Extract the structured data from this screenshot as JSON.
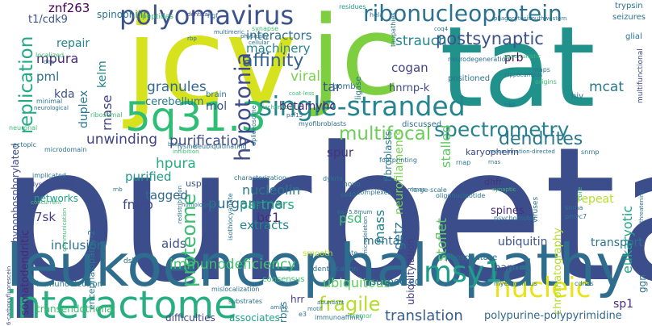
{
  "words": [
    {
      "text": "purbeta",
      "color": "#3b4e8b"
    },
    {
      "text": "jcv",
      "color": "#d7e21f"
    },
    {
      "text": "jc",
      "color": "#7dcf3f"
    },
    {
      "text": "tat",
      "color": "#21918c"
    },
    {
      "text": "leukoencephalopathy",
      "color": "#2f6d8e"
    },
    {
      "text": "interactome",
      "color": "#28ae80"
    },
    {
      "text": "5q31.3",
      "color": "#2ebd74"
    },
    {
      "text": "polyomavirus",
      "color": "#3b528b"
    },
    {
      "text": "ribonucleoprotein",
      "color": "#2c718e"
    },
    {
      "text": "single-stranded",
      "color": "#25858e"
    },
    {
      "text": "hypotonia",
      "color": "#3e4a89"
    },
    {
      "text": "spectrometry",
      "color": "#26828e"
    },
    {
      "text": "nucleic",
      "color": "#e6e419"
    },
    {
      "text": "msy1",
      "color": "#1f9e89"
    },
    {
      "text": "postsynaptic",
      "color": "#3b528b"
    },
    {
      "text": "proteome",
      "color": "#3fbc73"
    },
    {
      "text": "replication",
      "color": "#22a884"
    },
    {
      "text": "multifocal",
      "color": "#6ccd5a"
    },
    {
      "text": "affinity",
      "color": "#34618d"
    },
    {
      "text": "dendrites",
      "color": "#2a788e"
    },
    {
      "text": "fragile",
      "color": "#b5de2b"
    },
    {
      "text": "translation",
      "color": "#365c8d"
    },
    {
      "text": "purification",
      "color": "#3e4989"
    },
    {
      "text": "granules",
      "color": "#31688e"
    },
    {
      "text": "unwinding",
      "color": "#414487"
    },
    {
      "text": "immunodeficiency",
      "color": "#44bf70"
    },
    {
      "text": "purgamma",
      "color": "#2e6f8e"
    },
    {
      "text": "hpura",
      "color": "#27ad81"
    },
    {
      "text": "viral",
      "color": "#7ad151"
    },
    {
      "text": "cogan",
      "color": "#414487"
    },
    {
      "text": "hnrnp-k",
      "color": "#3f4889"
    },
    {
      "text": "strauch",
      "color": "#24868e"
    },
    {
      "text": "interactors",
      "color": "#2d708e"
    },
    {
      "text": "machinery",
      "color": "#25848e"
    },
    {
      "text": "tar",
      "color": "#3b528b"
    },
    {
      "text": "betamyhc",
      "color": "#482475"
    },
    {
      "text": "cerebellum",
      "color": "#2a788e"
    },
    {
      "text": "mol",
      "color": "#3a548c"
    },
    {
      "text": "znf263",
      "color": "#440154"
    },
    {
      "text": "t1/cdk9",
      "color": "#3b528b"
    },
    {
      "text": "spinophilin",
      "color": "#2a788e"
    },
    {
      "text": "kelm",
      "color": "#23888e"
    },
    {
      "text": "mpura",
      "color": "#482878"
    },
    {
      "text": "pml",
      "color": "#2c728e"
    },
    {
      "text": "kda",
      "color": "#3b528b"
    },
    {
      "text": "repair",
      "color": "#25848e"
    },
    {
      "text": "rnase",
      "color": "#414487"
    },
    {
      "text": "duplex",
      "color": "#2a788e"
    },
    {
      "text": "neurofilaments",
      "color": "#7ad151"
    },
    {
      "text": "fibroblasts",
      "color": "#2a788e"
    },
    {
      "text": "stalled",
      "color": "#5ec962"
    },
    {
      "text": "prb",
      "color": "#440154"
    },
    {
      "text": "mcat",
      "color": "#2a788e"
    },
    {
      "text": "eukaryotic",
      "color": "#20a386"
    },
    {
      "text": "chromatography",
      "color": "#b5de2b"
    },
    {
      "text": "getz",
      "color": "#2c728e"
    },
    {
      "text": "spur",
      "color": "#46327e"
    },
    {
      "text": "purified",
      "color": "#1f9a8a"
    },
    {
      "text": "tagged",
      "color": "#31688e"
    },
    {
      "text": "fmrp",
      "color": "#3e4989"
    },
    {
      "text": "nucleolin",
      "color": "#2a788e"
    },
    {
      "text": "partners",
      "color": "#22a884"
    },
    {
      "text": "bc1",
      "color": "#472d7b"
    },
    {
      "text": "psd",
      "color": "#3fbc73"
    },
    {
      "text": "mass",
      "color": "#26828e"
    },
    {
      "text": "extracts",
      "color": "#25848e"
    },
    {
      "text": "aids",
      "color": "#3b528b"
    },
    {
      "text": "inclusion",
      "color": "#2c728e"
    },
    {
      "text": "7sk",
      "color": "#433e85"
    },
    {
      "text": "networks",
      "color": "#1fa188"
    },
    {
      "text": "somatodendritic",
      "color": "#482878"
    },
    {
      "text": "encephalopathy-2",
      "color": "#2a788e"
    },
    {
      "text": "hypophosphorylated",
      "color": "#3e4a89"
    },
    {
      "text": "stoflet",
      "color": "#5ec962"
    },
    {
      "text": "spines",
      "color": "#472d7b"
    },
    {
      "text": "repeat",
      "color": "#b5de2b"
    },
    {
      "text": "ubiquitin",
      "color": "#3b528b"
    },
    {
      "text": "transport",
      "color": "#2c728e"
    },
    {
      "text": "mental",
      "color": "#2c728e"
    },
    {
      "text": "ubiquitylation",
      "color": "#433e85"
    },
    {
      "text": "ubiquitous",
      "color": "#5ec962"
    },
    {
      "text": "band",
      "color": "#3e4989"
    },
    {
      "text": "sp1",
      "color": "#472d7b"
    },
    {
      "text": "polypurine-polypyrimidine",
      "color": "#31688e"
    },
    {
      "text": "rbps",
      "color": "#2a788e"
    },
    {
      "text": "hrr",
      "color": "#433e85"
    },
    {
      "text": "difficulties",
      "color": "#414487"
    },
    {
      "text": "associates",
      "color": "#1fa188"
    },
    {
      "text": "transendothelial",
      "color": "#3fbc73"
    },
    {
      "text": "immunoelectron",
      "color": "#2a788e"
    },
    {
      "text": "ggn",
      "color": "#2c728e"
    },
    {
      "text": "usp9x",
      "color": "#3b528b"
    },
    {
      "text": "karyopherin",
      "color": "#3e4989"
    },
    {
      "text": "discussed",
      "color": "#2c728e"
    },
    {
      "text": "dhfr",
      "color": "#46327e"
    },
    {
      "text": "suspected",
      "color": "#2c728e"
    },
    {
      "text": "phosphatase",
      "color": "#2c728e"
    },
    {
      "text": "hiv",
      "color": "#2c728e"
    },
    {
      "text": "glial",
      "color": "#2c728e"
    },
    {
      "text": "seizures",
      "color": "#2c728e"
    },
    {
      "text": "trypsin",
      "color": "#2c728e"
    },
    {
      "text": "positioned",
      "color": "#2c728e"
    },
    {
      "text": "neurodegeneration",
      "color": "#2c728e"
    },
    {
      "text": "bomb",
      "color": "#2c728e"
    },
    {
      "text": "ligase",
      "color": "#2c728e"
    },
    {
      "text": "brain",
      "color": "#2c728e"
    },
    {
      "text": "peptides",
      "color": "#3fbc73"
    },
    {
      "text": "identical",
      "color": "#3e4989"
    },
    {
      "text": "residues",
      "color": "#1f9a8a"
    },
    {
      "text": "ngf",
      "color": "#2c728e"
    },
    {
      "text": "hela",
      "color": "#2c728e"
    },
    {
      "text": "southwestern",
      "color": "#2c728e"
    },
    {
      "text": "phagocytosis",
      "color": "#2c728e"
    },
    {
      "text": "taupathies",
      "color": "#2c728e"
    },
    {
      "text": "hippocampus",
      "color": "#2c728e"
    },
    {
      "text": "coq4",
      "color": "#2c728e"
    },
    {
      "text": "origins",
      "color": "#3fbc73"
    },
    {
      "text": "maps",
      "color": "#2c728e"
    },
    {
      "text": "multifunctional",
      "color": "#3e4989"
    },
    {
      "text": "snrnp",
      "color": "#2c728e"
    },
    {
      "text": "opportunistic",
      "color": "#3fbc73"
    },
    {
      "text": "trka",
      "color": "#2c728e"
    },
    {
      "text": "rnap",
      "color": "#2c728e"
    },
    {
      "text": "rnas",
      "color": "#2c728e"
    },
    {
      "text": "synaptic",
      "color": "#3fbc73"
    },
    {
      "text": "viruses",
      "color": "#2c728e"
    },
    {
      "text": "snrna",
      "color": "#2c728e"
    },
    {
      "text": "pmyc7",
      "color": "#2c728e"
    },
    {
      "text": "psychomotor",
      "color": "#2c728e"
    },
    {
      "text": "oligonucleotide",
      "color": "#2c728e"
    },
    {
      "text": "recombination-directed",
      "color": "#2c728e"
    },
    {
      "text": "core",
      "color": "#3fbc73"
    },
    {
      "text": "threatening",
      "color": "#2c728e"
    },
    {
      "text": "cdnas",
      "color": "#2c728e"
    },
    {
      "text": "myelogenous",
      "color": "#2c728e"
    },
    {
      "text": "tremor",
      "color": "#3fbc73"
    },
    {
      "text": "immunoaffinity",
      "color": "#2c728e"
    },
    {
      "text": "identification",
      "color": "#2c728e"
    },
    {
      "text": "substrates",
      "color": "#2c728e"
    },
    {
      "text": "mislocalization",
      "color": "#2c728e"
    },
    {
      "text": "consensus",
      "color": "#3fbc73"
    },
    {
      "text": "amino",
      "color": "#2c728e"
    },
    {
      "text": "smooth",
      "color": "#b5de2b"
    },
    {
      "text": "late",
      "color": "#2c728e"
    },
    {
      "text": "motif",
      "color": "#2c728e"
    },
    {
      "text": "abundant",
      "color": "#2c728e"
    },
    {
      "text": "e3",
      "color": "#2c728e"
    },
    {
      "text": "characterization",
      "color": "#2c728e"
    },
    {
      "text": "novo",
      "color": "#2c728e"
    },
    {
      "text": "complexes",
      "color": "#2c728e"
    },
    {
      "text": "large-scale",
      "color": "#2c728e"
    },
    {
      "text": "microdeletion",
      "color": "#2c728e"
    },
    {
      "text": "sv40",
      "color": "#2c728e"
    },
    {
      "text": "dykrla",
      "color": "#2c728e"
    },
    {
      "text": "footprinting",
      "color": "#2c728e"
    },
    {
      "text": "myofibroblasts",
      "color": "#2c728e"
    },
    {
      "text": "spliceosome",
      "color": "#2c728e"
    },
    {
      "text": "paf15",
      "color": "#2c728e"
    },
    {
      "text": "biochemical",
      "color": "#3fbc73"
    },
    {
      "text": "coat-less",
      "color": "#3fbc73"
    },
    {
      "text": "cellular",
      "color": "#2c728e"
    },
    {
      "text": "physically",
      "color": "#2c728e"
    },
    {
      "text": "multimeric",
      "color": "#2c728e"
    },
    {
      "text": "rbp",
      "color": "#2c728e"
    },
    {
      "text": "synapse",
      "color": "#3fbc73"
    },
    {
      "text": "ribosomal",
      "color": "#3fbc73"
    },
    {
      "text": "minimal",
      "color": "#2c728e"
    },
    {
      "text": "neurological",
      "color": "#2c728e"
    },
    {
      "text": "dna",
      "color": "#2c728e"
    },
    {
      "text": "localized",
      "color": "#3fbc73"
    },
    {
      "text": "neuronal",
      "color": "#3fbc73"
    },
    {
      "text": "ectopic",
      "color": "#2c728e"
    },
    {
      "text": "microdomain",
      "color": "#2c728e"
    },
    {
      "text": "lysine",
      "color": "#2c728e"
    },
    {
      "text": "beta",
      "color": "#2c728e"
    },
    {
      "text": "deubiquitinating",
      "color": "#2c728e"
    },
    {
      "text": "inhibition",
      "color": "#3fbc73"
    },
    {
      "text": "epileptic",
      "color": "#3e4989"
    },
    {
      "text": "homologous",
      "color": "#2c728e"
    },
    {
      "text": "redistribution",
      "color": "#2c728e"
    },
    {
      "text": "isothiocyanate",
      "color": "#2c728e"
    },
    {
      "text": "dysconjugate",
      "color": "#3e4989"
    },
    {
      "text": "implicated",
      "color": "#2c728e"
    },
    {
      "text": "concurrent",
      "color": "#3fbc73"
    },
    {
      "text": "communication",
      "color": "#3fbc73"
    },
    {
      "text": "dsb",
      "color": "#2c728e"
    },
    {
      "text": "6-carboxyfluorescein",
      "color": "#3e4989"
    },
    {
      "text": "rnb",
      "color": "#2c728e"
    },
    {
      "text": "ka=5.8mum",
      "color": "#2c728e"
    },
    {
      "text": "mrnas",
      "color": "#2c728e"
    }
  ]
}
